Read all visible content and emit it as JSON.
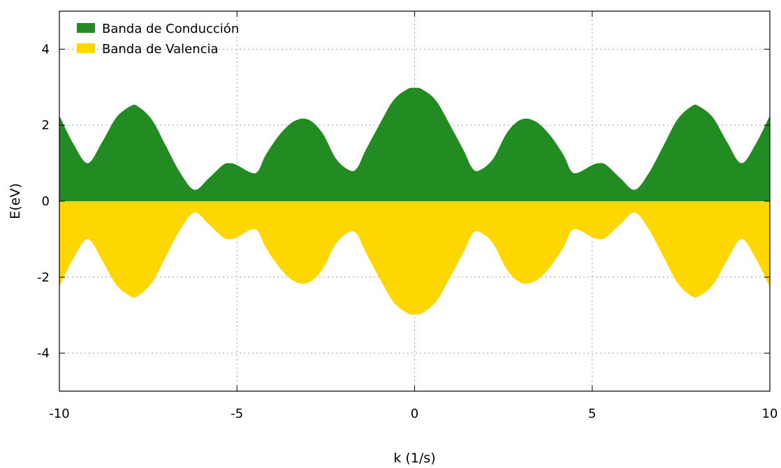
{
  "chart_data": {
    "type": "area",
    "xlabel": "k (1/s)",
    "ylabel": "E(eV)",
    "xlim": [
      -10,
      10
    ],
    "ylim": [
      -5,
      5
    ],
    "x_ticks": [
      -10,
      -5,
      0,
      5,
      10
    ],
    "y_ticks": [
      -4,
      -2,
      0,
      2,
      4
    ],
    "x_tick_labels": [
      "-10",
      "-5",
      "0",
      "5",
      "10"
    ],
    "y_tick_labels": [
      "-4",
      "-2",
      "0",
      "2",
      "4"
    ],
    "grid": true,
    "legend_position": "top-left",
    "x": [
      -10,
      -9.6,
      -9.2,
      -8.8,
      -8.4,
      -8.0,
      -7.8,
      -7.4,
      -7.0,
      -6.6,
      -6.2,
      -5.8,
      -5.4,
      -5.2,
      -5.0,
      -4.6,
      -4.4,
      -4.2,
      -3.8,
      -3.4,
      -3.0,
      -2.6,
      -2.2,
      -1.8,
      -1.6,
      -1.4,
      -1.0,
      -0.6,
      -0.2,
      0,
      0.2,
      0.6,
      1.0,
      1.4,
      1.6,
      1.8,
      2.2,
      2.6,
      3.0,
      3.4,
      3.8,
      4.2,
      4.4,
      4.6,
      5.0,
      5.2,
      5.4,
      5.8,
      6.2,
      6.6,
      7.0,
      7.4,
      7.8,
      8.0,
      8.4,
      8.8,
      9.2,
      9.6,
      10
    ],
    "series": [
      {
        "name": "Banda de Conducción",
        "color": "#228b22",
        "values": [
          2.25,
          1.5,
          1.0,
          1.55,
          2.2,
          2.5,
          2.5,
          2.15,
          1.45,
          0.75,
          0.3,
          0.6,
          0.95,
          1.0,
          0.95,
          0.75,
          0.8,
          1.2,
          1.75,
          2.1,
          2.15,
          1.8,
          1.1,
          0.8,
          0.9,
          1.3,
          2.0,
          2.65,
          2.95,
          2.98,
          2.95,
          2.65,
          2.0,
          1.3,
          0.9,
          0.8,
          1.1,
          1.8,
          2.15,
          2.1,
          1.75,
          1.2,
          0.8,
          0.75,
          0.95,
          1.0,
          0.95,
          0.6,
          0.3,
          0.75,
          1.45,
          2.15,
          2.5,
          2.5,
          2.2,
          1.55,
          1.0,
          1.5,
          2.25
        ]
      },
      {
        "name": "Banda de Valencia",
        "color": "#ffd700",
        "values": [
          -2.25,
          -1.5,
          -1.0,
          -1.55,
          -2.2,
          -2.5,
          -2.5,
          -2.15,
          -1.45,
          -0.75,
          -0.3,
          -0.6,
          -0.95,
          -1.0,
          -0.95,
          -0.75,
          -0.8,
          -1.2,
          -1.75,
          -2.1,
          -2.15,
          -1.8,
          -1.1,
          -0.8,
          -0.9,
          -1.3,
          -2.0,
          -2.65,
          -2.95,
          -2.98,
          -2.95,
          -2.65,
          -2.0,
          -1.3,
          -0.9,
          -0.8,
          -1.1,
          -1.8,
          -2.15,
          -2.1,
          -1.75,
          -1.2,
          -0.8,
          -0.75,
          -0.95,
          -1.0,
          -0.95,
          -0.6,
          -0.3,
          -0.75,
          -1.45,
          -2.15,
          -2.5,
          -2.5,
          -2.2,
          -1.55,
          -1.0,
          -1.5,
          -2.25
        ]
      }
    ]
  }
}
